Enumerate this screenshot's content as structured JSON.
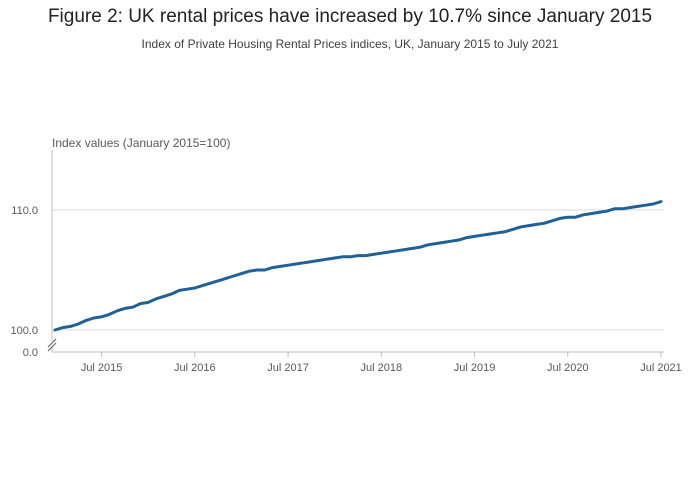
{
  "header": {
    "title": "Figure 2: UK rental prices have increased by 10.7% since January 2015",
    "subtitle": "Index of Private Housing Rental Prices indices, UK, January 2015 to July 2021"
  },
  "chart_data": {
    "type": "line",
    "title": "Figure 2: UK rental prices have increased by 10.7% since January 2015",
    "subtitle": "Index of Private Housing Rental Prices indices, UK, January 2015 to July 2021",
    "ylabel": "Index values (January 2015=100)",
    "xlabel": "",
    "ylim": [
      100,
      111.5
    ],
    "y_axis_break": true,
    "y_ticks": [
      {
        "value": 110,
        "label": "110.0"
      },
      {
        "value": 100,
        "label": "100.0"
      },
      {
        "value": 0,
        "label": "0.0"
      }
    ],
    "x_ticks": [
      "Jul 2015",
      "Jul 2016",
      "Jul 2017",
      "Jul 2018",
      "Jul 2019",
      "Jul 2020",
      "Jul 2021"
    ],
    "colors": {
      "line": "#206095",
      "grid": "#d9d9d9",
      "axis": "#bcbcbc"
    },
    "grid": true,
    "series": [
      {
        "name": "",
        "x": [
          "Jan 2015",
          "Feb 2015",
          "Mar 2015",
          "Apr 2015",
          "May 2015",
          "Jun 2015",
          "Jul 2015",
          "Aug 2015",
          "Sep 2015",
          "Oct 2015",
          "Nov 2015",
          "Dec 2015",
          "Jan 2016",
          "Feb 2016",
          "Mar 2016",
          "Apr 2016",
          "May 2016",
          "Jun 2016",
          "Jul 2016",
          "Aug 2016",
          "Sep 2016",
          "Oct 2016",
          "Nov 2016",
          "Dec 2016",
          "Jan 2017",
          "Feb 2017",
          "Mar 2017",
          "Apr 2017",
          "May 2017",
          "Jun 2017",
          "Jul 2017",
          "Aug 2017",
          "Sep 2017",
          "Oct 2017",
          "Nov 2017",
          "Dec 2017",
          "Jan 2018",
          "Feb 2018",
          "Mar 2018",
          "Apr 2018",
          "May 2018",
          "Jun 2018",
          "Jul 2018",
          "Aug 2018",
          "Sep 2018",
          "Oct 2018",
          "Nov 2018",
          "Dec 2018",
          "Jan 2019",
          "Feb 2019",
          "Mar 2019",
          "Apr 2019",
          "May 2019",
          "Jun 2019",
          "Jul 2019",
          "Aug 2019",
          "Sep 2019",
          "Oct 2019",
          "Nov 2019",
          "Dec 2019",
          "Jan 2020",
          "Feb 2020",
          "Mar 2020",
          "Apr 2020",
          "May 2020",
          "Jun 2020",
          "Jul 2020",
          "Aug 2020",
          "Sep 2020",
          "Oct 2020",
          "Nov 2020",
          "Dec 2020",
          "Jan 2021",
          "Feb 2021",
          "Mar 2021",
          "Apr 2021",
          "May 2021",
          "Jun 2021",
          "Jul 2021"
        ],
        "values": [
          100.0,
          100.2,
          100.3,
          100.5,
          100.8,
          101.0,
          101.1,
          101.3,
          101.6,
          101.8,
          101.9,
          102.2,
          102.3,
          102.6,
          102.8,
          103.0,
          103.3,
          103.4,
          103.5,
          103.7,
          103.9,
          104.1,
          104.3,
          104.5,
          104.7,
          104.9,
          105.0,
          105.0,
          105.2,
          105.3,
          105.4,
          105.5,
          105.6,
          105.7,
          105.8,
          105.9,
          106.0,
          106.1,
          106.1,
          106.2,
          106.2,
          106.3,
          106.4,
          106.5,
          106.6,
          106.7,
          106.8,
          106.9,
          107.1,
          107.2,
          107.3,
          107.4,
          107.5,
          107.7,
          107.8,
          107.9,
          108.0,
          108.1,
          108.2,
          108.4,
          108.6,
          108.7,
          108.8,
          108.9,
          109.1,
          109.3,
          109.4,
          109.4,
          109.6,
          109.7,
          109.8,
          109.9,
          110.1,
          110.1,
          110.2,
          110.3,
          110.4,
          110.5,
          110.7
        ]
      }
    ]
  }
}
